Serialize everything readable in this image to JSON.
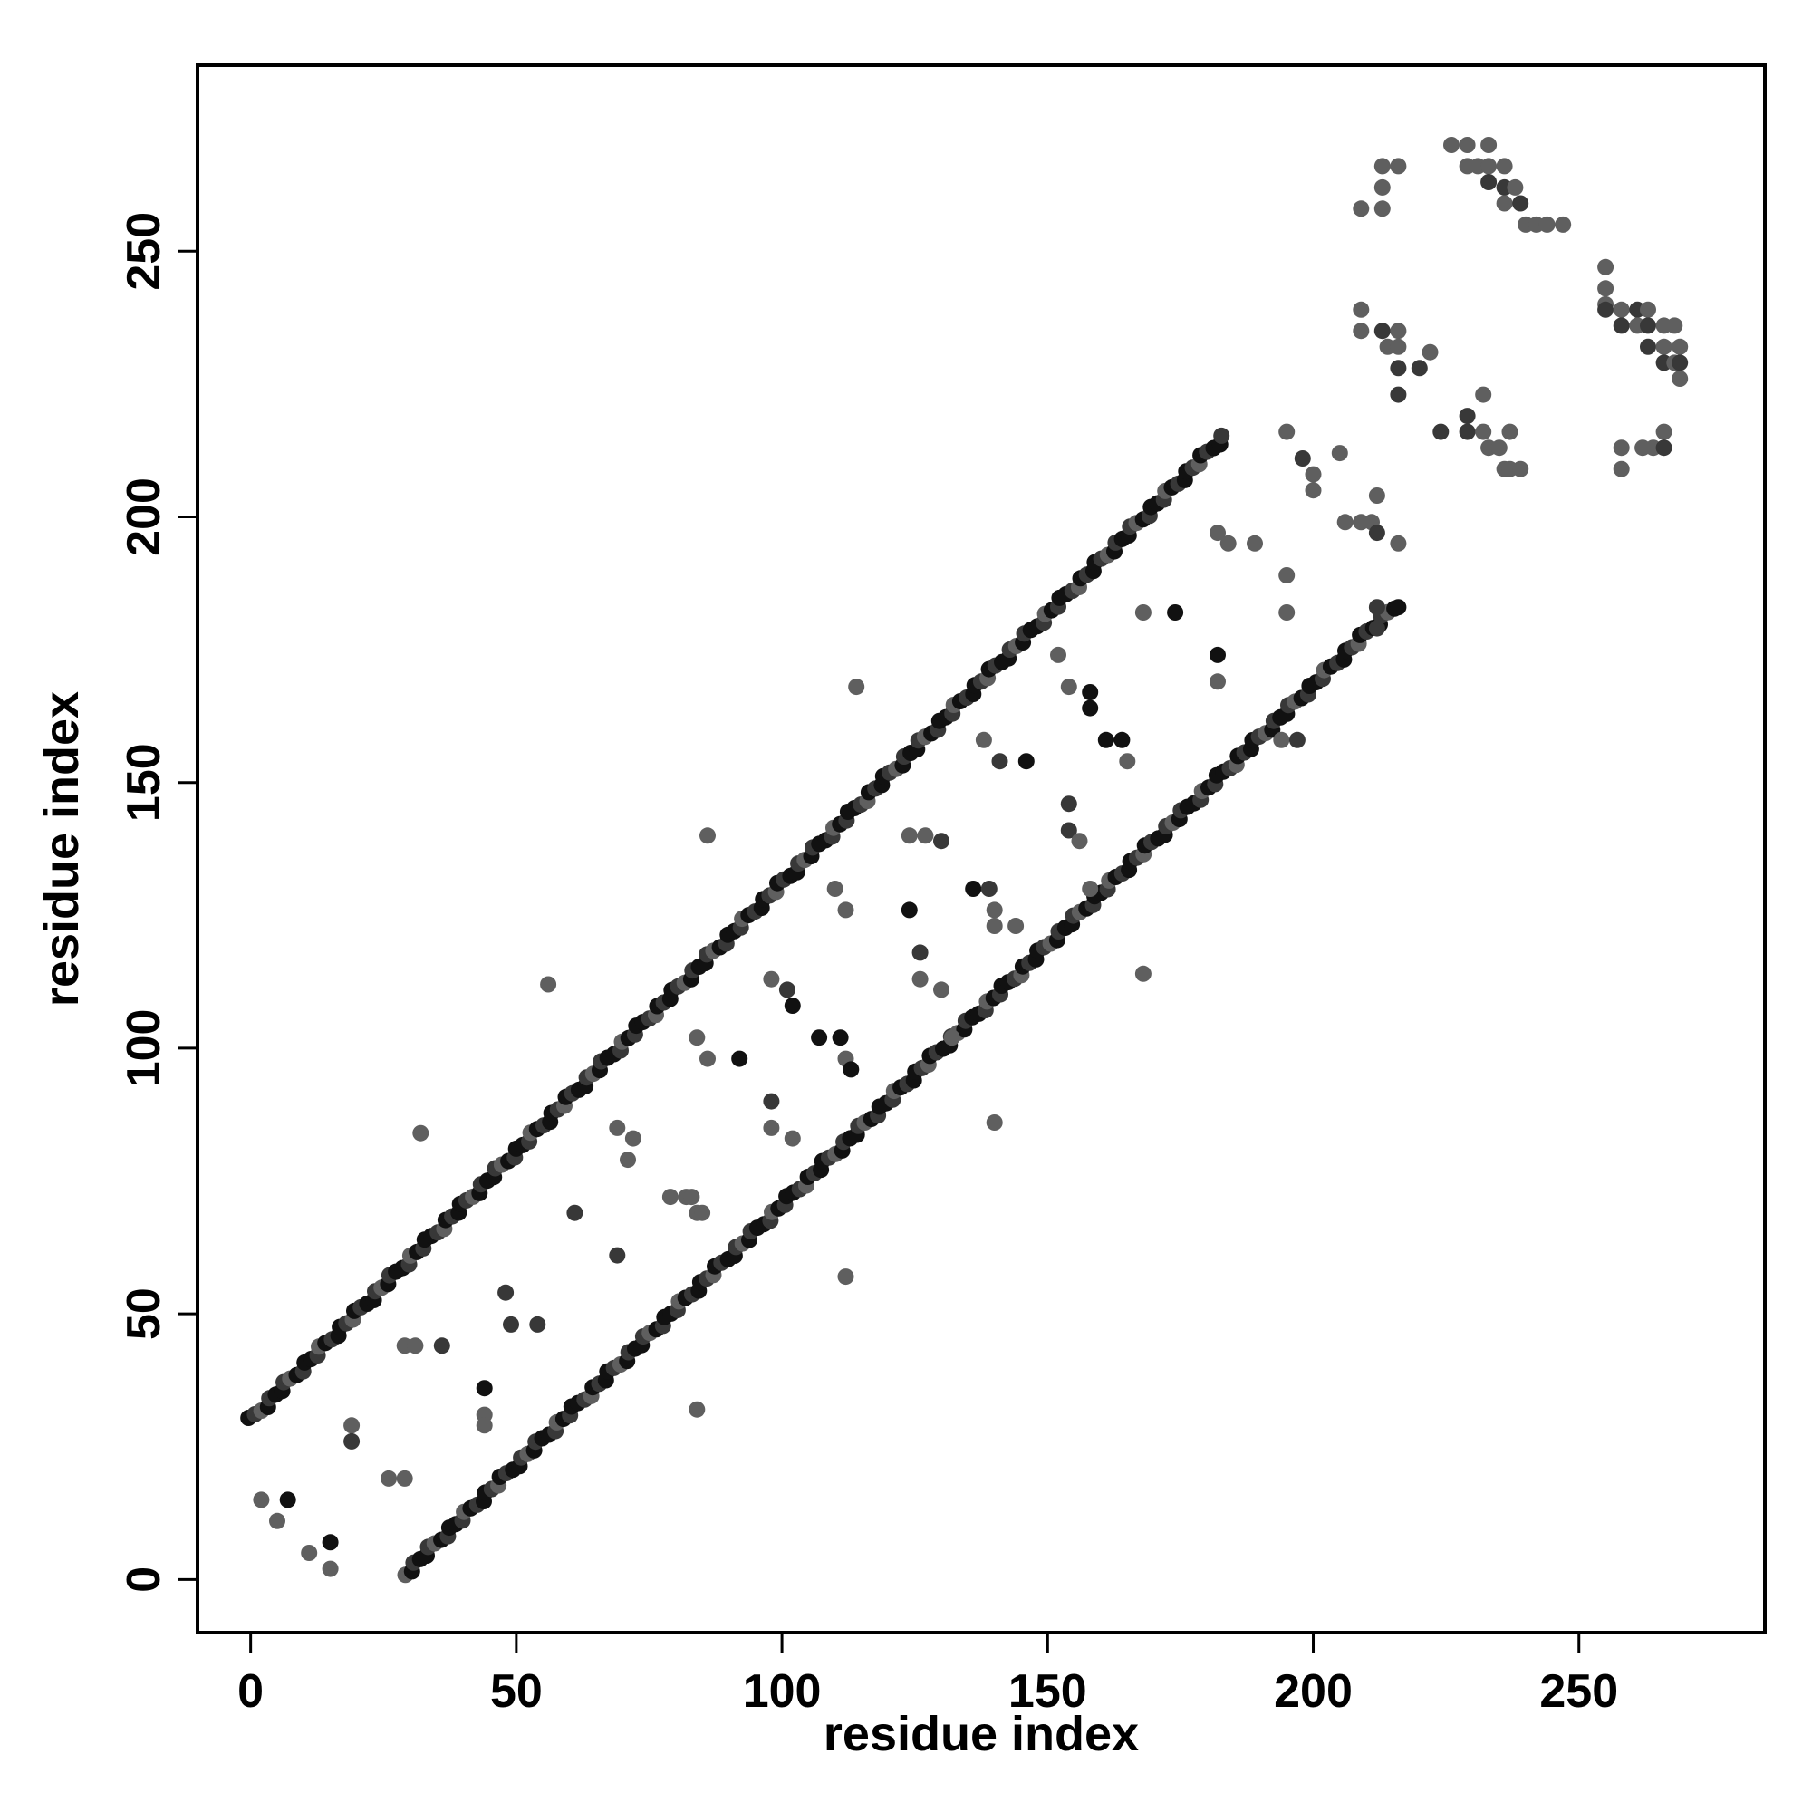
{
  "chart_data": {
    "type": "scatter",
    "title": "",
    "xlabel": "residue index",
    "ylabel": "residue index",
    "xlim": [
      -10,
      285
    ],
    "ylim": [
      -10,
      285
    ],
    "x_ticks": [
      0,
      50,
      100,
      150,
      200,
      250
    ],
    "y_ticks": [
      0,
      50,
      100,
      150,
      200,
      250
    ],
    "grid": false,
    "legend": "none",
    "colors": {
      "dark": "#111111",
      "medium": "#383838",
      "light": "#5f5f5f"
    },
    "band_segments": [
      {
        "x0": 0,
        "y0": 30,
        "x1": 183,
        "y1": 215
      },
      {
        "x0": 29,
        "y0": 1,
        "x1": 215,
        "y1": 183
      }
    ],
    "points": [
      [
        2,
        15,
        "light"
      ],
      [
        5,
        11,
        "light"
      ],
      [
        7,
        15,
        "dark"
      ],
      [
        11,
        5,
        "light"
      ],
      [
        15,
        7,
        "dark"
      ],
      [
        15,
        2,
        "light"
      ],
      [
        19,
        29,
        "light"
      ],
      [
        19,
        26,
        "medium"
      ],
      [
        26,
        19,
        "light"
      ],
      [
        29,
        19,
        "light"
      ],
      [
        32,
        84,
        "light"
      ],
      [
        29,
        44,
        "light"
      ],
      [
        31,
        44,
        "light"
      ],
      [
        36,
        44,
        "medium"
      ],
      [
        44,
        36,
        "dark"
      ],
      [
        44,
        31,
        "light"
      ],
      [
        44,
        29,
        "light"
      ],
      [
        48,
        54,
        "medium"
      ],
      [
        49,
        48,
        "medium"
      ],
      [
        54,
        48,
        "medium"
      ],
      [
        56,
        112,
        "light"
      ],
      [
        61,
        69,
        "medium"
      ],
      [
        69,
        61,
        "medium"
      ],
      [
        69,
        85,
        "light"
      ],
      [
        71,
        79,
        "light"
      ],
      [
        72,
        83,
        "light"
      ],
      [
        79,
        72,
        "light"
      ],
      [
        82,
        72,
        "light"
      ],
      [
        83,
        72,
        "light"
      ],
      [
        84,
        69,
        "light"
      ],
      [
        85,
        69,
        "light"
      ],
      [
        84,
        32,
        "light"
      ],
      [
        86,
        140,
        "light"
      ],
      [
        84,
        102,
        "light"
      ],
      [
        86,
        98,
        "light"
      ],
      [
        92,
        98,
        "dark"
      ],
      [
        98,
        90,
        "medium"
      ],
      [
        98,
        85,
        "light"
      ],
      [
        98,
        113,
        "light"
      ],
      [
        101,
        111,
        "medium"
      ],
      [
        102,
        83,
        "light"
      ],
      [
        102,
        108,
        "dark"
      ],
      [
        107,
        102,
        "dark"
      ],
      [
        111,
        102,
        "dark"
      ],
      [
        110,
        130,
        "light"
      ],
      [
        112,
        57,
        "light"
      ],
      [
        112,
        126,
        "light"
      ],
      [
        112,
        98,
        "light"
      ],
      [
        114,
        168,
        "light"
      ],
      [
        113,
        96,
        "dark"
      ],
      [
        124,
        126,
        "dark"
      ],
      [
        124,
        140,
        "light"
      ],
      [
        126,
        113,
        "light"
      ],
      [
        126,
        118,
        "medium"
      ],
      [
        127,
        140,
        "light"
      ],
      [
        130,
        139,
        "medium"
      ],
      [
        130,
        111,
        "light"
      ],
      [
        132,
        102,
        "light"
      ],
      [
        136,
        130,
        "dark"
      ],
      [
        139,
        130,
        "medium"
      ],
      [
        138,
        158,
        "light"
      ],
      [
        140,
        86,
        "light"
      ],
      [
        140,
        126,
        "light"
      ],
      [
        140,
        123,
        "light"
      ],
      [
        141,
        154,
        "medium"
      ],
      [
        144,
        123,
        "light"
      ],
      [
        146,
        154,
        "dark"
      ],
      [
        154,
        146,
        "medium"
      ],
      [
        154,
        141,
        "medium"
      ],
      [
        156,
        139,
        "light"
      ],
      [
        158,
        130,
        "light"
      ],
      [
        158,
        167,
        "dark"
      ],
      [
        158,
        164,
        "dark"
      ],
      [
        154,
        168,
        "light"
      ],
      [
        152,
        174,
        "light"
      ],
      [
        161,
        158,
        "dark"
      ],
      [
        164,
        158,
        "dark"
      ],
      [
        165,
        154,
        "light"
      ],
      [
        168,
        114,
        "light"
      ],
      [
        168,
        182,
        "light"
      ],
      [
        174,
        182,
        "dark"
      ],
      [
        182,
        174,
        "dark"
      ],
      [
        182,
        169,
        "light"
      ],
      [
        182,
        197,
        "light"
      ],
      [
        184,
        195,
        "light"
      ],
      [
        189,
        195,
        "light"
      ],
      [
        194,
        158,
        "light"
      ],
      [
        195,
        182,
        "light"
      ],
      [
        195,
        189,
        "light"
      ],
      [
        195,
        216,
        "light"
      ],
      [
        197,
        158,
        "medium"
      ],
      [
        198,
        211,
        "medium"
      ],
      [
        200,
        208,
        "light"
      ],
      [
        200,
        205,
        "light"
      ],
      [
        205,
        212,
        "light"
      ],
      [
        206,
        199,
        "light"
      ],
      [
        209,
        199,
        "light"
      ],
      [
        211,
        199,
        "light"
      ],
      [
        212,
        204,
        "light"
      ],
      [
        212,
        197,
        "medium"
      ],
      [
        216,
        195,
        "light"
      ],
      [
        212,
        183,
        "medium"
      ],
      [
        212,
        179,
        "medium"
      ],
      [
        216,
        183,
        "dark"
      ],
      [
        209,
        239,
        "light"
      ],
      [
        209,
        235,
        "light"
      ],
      [
        209,
        258,
        "light"
      ],
      [
        213,
        266,
        "light"
      ],
      [
        213,
        262,
        "light"
      ],
      [
        213,
        258,
        "light"
      ],
      [
        213,
        235,
        "medium"
      ],
      [
        214,
        232,
        "light"
      ],
      [
        216,
        266,
        "light"
      ],
      [
        216,
        235,
        "light"
      ],
      [
        216,
        232,
        "light"
      ],
      [
        216,
        228,
        "medium"
      ],
      [
        216,
        223,
        "medium"
      ],
      [
        220,
        228,
        "medium"
      ],
      [
        222,
        231,
        "light"
      ],
      [
        224,
        216,
        "medium"
      ],
      [
        226,
        270,
        "light"
      ],
      [
        229,
        270,
        "light"
      ],
      [
        229,
        266,
        "light"
      ],
      [
        229,
        219,
        "medium"
      ],
      [
        229,
        216,
        "medium"
      ],
      [
        231,
        266,
        "light"
      ],
      [
        232,
        216,
        "light"
      ],
      [
        232,
        223,
        "light"
      ],
      [
        233,
        270,
        "light"
      ],
      [
        233,
        266,
        "light"
      ],
      [
        233,
        263,
        "medium"
      ],
      [
        233,
        213,
        "light"
      ],
      [
        235,
        213,
        "light"
      ],
      [
        236,
        266,
        "light"
      ],
      [
        236,
        262,
        "medium"
      ],
      [
        236,
        259,
        "light"
      ],
      [
        236,
        209,
        "light"
      ],
      [
        237,
        209,
        "light"
      ],
      [
        237,
        216,
        "light"
      ],
      [
        238,
        262,
        "light"
      ],
      [
        239,
        259,
        "medium"
      ],
      [
        239,
        209,
        "light"
      ],
      [
        240,
        255,
        "light"
      ],
      [
        242,
        255,
        "light"
      ],
      [
        244,
        255,
        "light"
      ],
      [
        247,
        255,
        "light"
      ],
      [
        255,
        247,
        "light"
      ],
      [
        255,
        243,
        "light"
      ],
      [
        255,
        240,
        "light"
      ],
      [
        255,
        239,
        "medium"
      ],
      [
        258,
        239,
        "light"
      ],
      [
        258,
        236,
        "medium"
      ],
      [
        258,
        213,
        "light"
      ],
      [
        258,
        209,
        "light"
      ],
      [
        261,
        239,
        "medium"
      ],
      [
        261,
        236,
        "light"
      ],
      [
        262,
        213,
        "light"
      ],
      [
        263,
        239,
        "light"
      ],
      [
        263,
        236,
        "medium"
      ],
      [
        263,
        232,
        "medium"
      ],
      [
        264,
        213,
        "light"
      ],
      [
        266,
        236,
        "light"
      ],
      [
        266,
        232,
        "light"
      ],
      [
        266,
        229,
        "medium"
      ],
      [
        266,
        216,
        "light"
      ],
      [
        266,
        213,
        "medium"
      ],
      [
        268,
        236,
        "light"
      ],
      [
        268,
        229,
        "light"
      ],
      [
        269,
        232,
        "light"
      ],
      [
        269,
        229,
        "medium"
      ],
      [
        269,
        226,
        "light"
      ]
    ]
  }
}
